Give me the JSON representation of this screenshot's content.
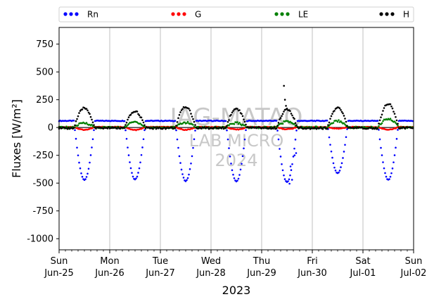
{
  "chart_data": {
    "type": "scatter",
    "xlabel": "2023",
    "ylabel": "Fluxes [W/m²]",
    "ylim": [
      -1100,
      900
    ],
    "yticks": [
      750,
      500,
      250,
      0,
      -250,
      -500,
      -750,
      -1000
    ],
    "xlim_days": [
      0,
      7
    ],
    "xtick_labels": [
      [
        "Sun",
        "Jun-25"
      ],
      [
        "Mon",
        "Jun-26"
      ],
      [
        "Tue",
        "Jun-27"
      ],
      [
        "Wed",
        "Jun-28"
      ],
      [
        "Thu",
        "Jun-29"
      ],
      [
        "Fri",
        "Jun-30"
      ],
      [
        "Sat",
        "Jul-01"
      ],
      [
        "Sun",
        "Jul-02"
      ]
    ],
    "grid": "vertical",
    "legend_position": "top",
    "series": [
      {
        "name": "Rn",
        "color": "#0000ff",
        "night_value": 60,
        "day_peaks": [
          -470,
          -465,
          -480,
          -485,
          -490,
          -410,
          -470
        ],
        "points": [
          {
            "x": 4.55,
            "y": -505
          },
          {
            "x": 4.57,
            "y": -350
          },
          {
            "x": 4.6,
            "y": -470
          },
          {
            "x": 4.65,
            "y": -250
          },
          {
            "x": 4.68,
            "y": -230
          }
        ]
      },
      {
        "name": "G",
        "color": "#ff0000",
        "night_value": 5,
        "day_peaks": [
          -20,
          -22,
          -20,
          -18,
          -15,
          -10,
          -18
        ],
        "points": []
      },
      {
        "name": "LE",
        "color": "#008000",
        "night_value": 0,
        "day_peaks": [
          40,
          50,
          45,
          40,
          55,
          60,
          80
        ],
        "points": []
      },
      {
        "name": "H",
        "color": "#000000",
        "night_value": -5,
        "day_peaks": [
          175,
          145,
          185,
          170,
          160,
          175,
          215
        ],
        "points": [
          {
            "x": 4.44,
            "y": 375
          },
          {
            "x": 4.46,
            "y": 250
          },
          {
            "x": 4.48,
            "y": 195
          },
          {
            "x": 4.5,
            "y": 170
          }
        ]
      }
    ]
  },
  "watermark": {
    "line1": "IAG-MATAO",
    "line2": "LAB MICRO",
    "line3": "2024"
  }
}
